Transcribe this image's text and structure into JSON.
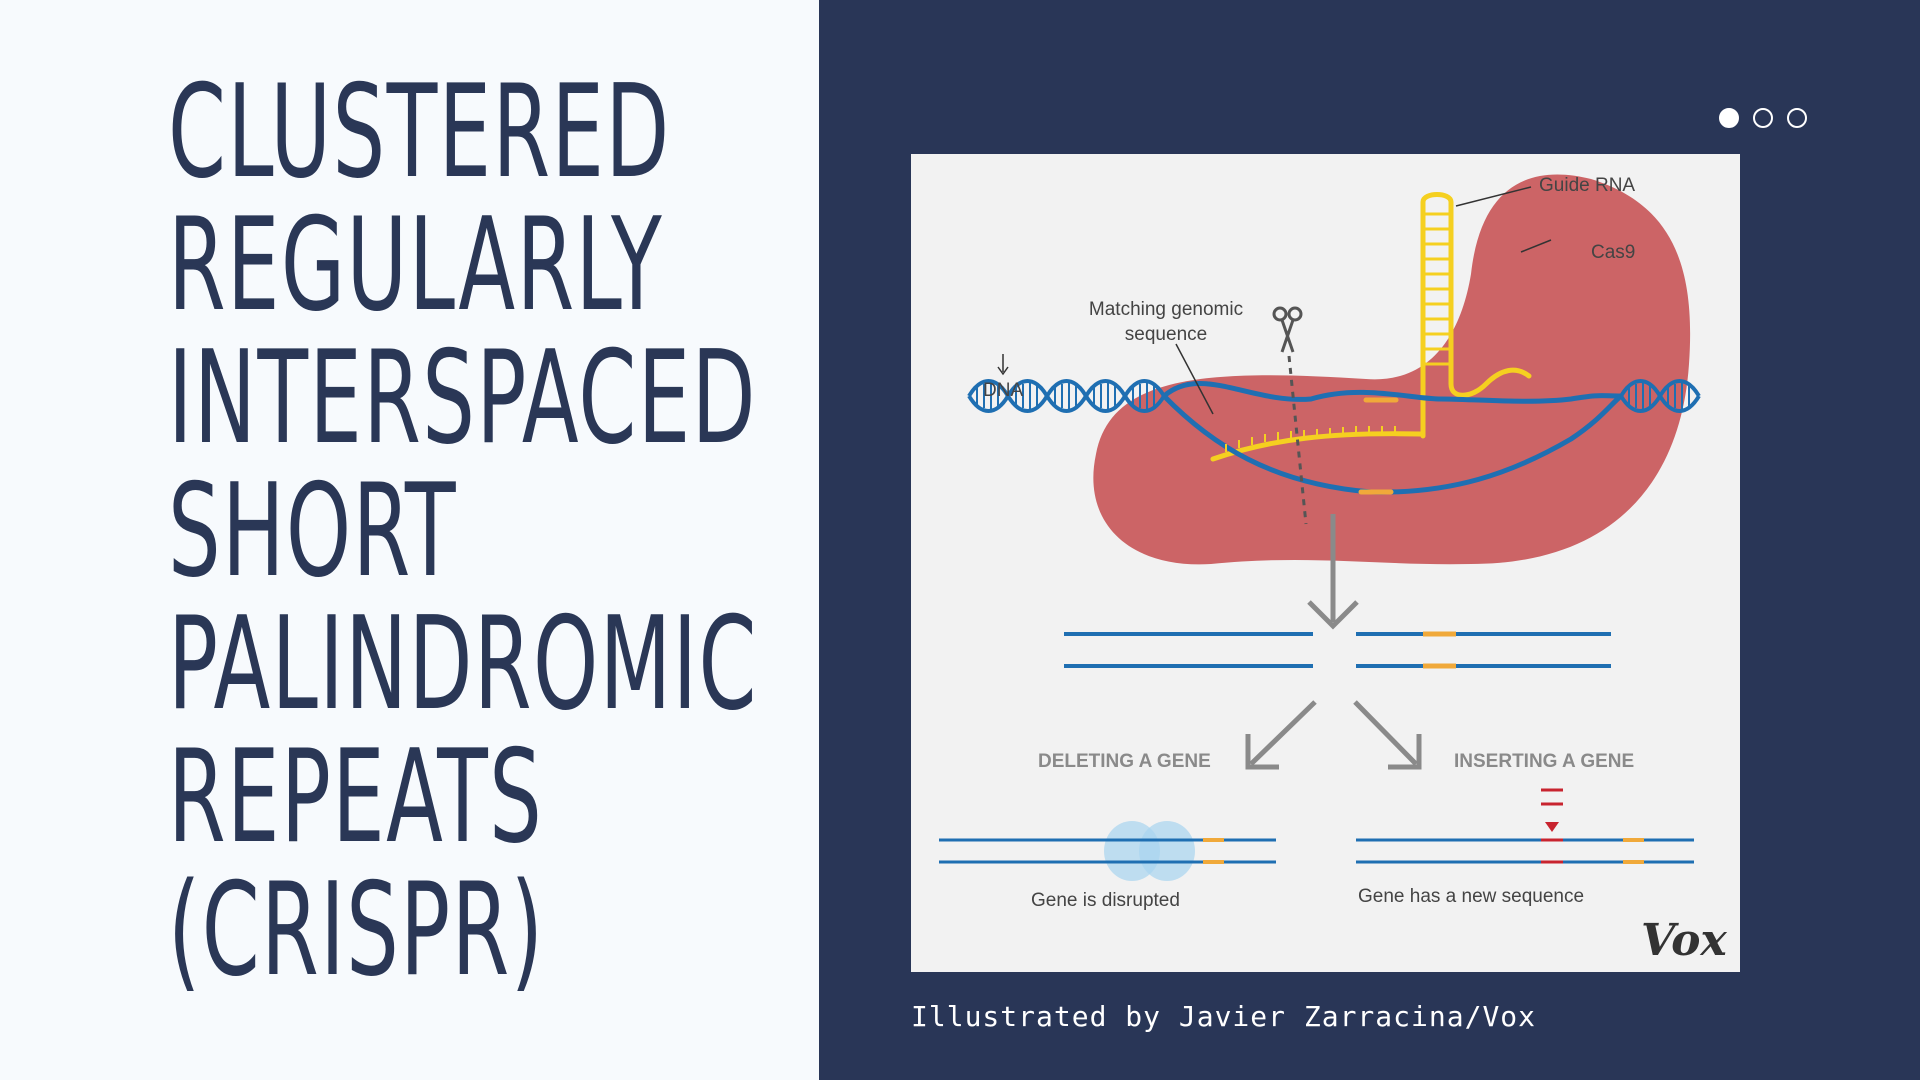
{
  "title_lines": [
    "CLUSTERED",
    "REGULARLY",
    "INTERSPACED",
    "SHORT",
    "PALINDROMIC",
    "REPEATS",
    "(CRISPR)"
  ],
  "carousel": {
    "dot_count": 3,
    "active_index": 0
  },
  "diagram": {
    "label_guide_rna": "Guide RNA",
    "label_cas9": "Cas9",
    "label_matching_1": "Matching genomic",
    "label_matching_2": "sequence",
    "label_dna": "DNA",
    "label_deleting": "DELETING A GENE",
    "label_inserting": "INSERTING A GENE",
    "label_disrupted": "Gene is disrupted",
    "label_new_sequence": "Gene has a new sequence",
    "logo": "Vox"
  },
  "caption": "Illustrated by Javier Zarracina/Vox",
  "colors": {
    "left_bg": "#f7fafd",
    "right_bg": "#293657",
    "title": "#2a3756",
    "cas9": "#cc6466",
    "dna_blue": "#1f6fb2",
    "guide_rna": "#f5d020",
    "accent_orange": "#f0a93a",
    "insert_red": "#c8242f"
  }
}
